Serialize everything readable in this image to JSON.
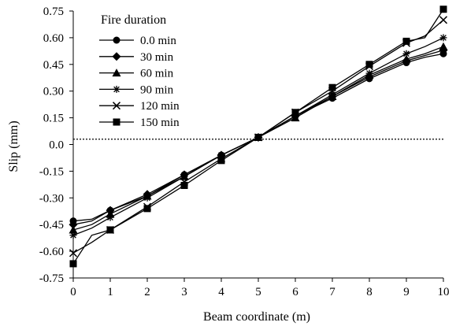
{
  "chart_data": {
    "type": "line",
    "title": "",
    "xlabel": "Beam coordinate (m)",
    "ylabel": "Slip (mm)",
    "xlim": [
      0,
      10
    ],
    "ylim": [
      -0.75,
      0.75
    ],
    "x_ticks": [
      "0",
      "1",
      "2",
      "3",
      "4",
      "5",
      "6",
      "7",
      "8",
      "9",
      "10"
    ],
    "y_ticks": [
      "0.75",
      "0.60",
      "0.45",
      "0.30",
      "0.15",
      "0.0",
      "-0.15",
      "-0.30",
      "-0.45",
      "-0.60",
      "-0.75"
    ],
    "grid": false,
    "reference_line": {
      "y": 0.03,
      "style": "dotted"
    },
    "legend": {
      "title": "Fire duration",
      "placement": "top-left"
    },
    "series": [
      {
        "name": "0.0 min",
        "marker": "circle",
        "x": [
          0,
          0.5,
          1,
          2,
          3,
          4,
          5,
          6,
          7,
          8,
          9,
          9.5,
          10
        ],
        "y": [
          -0.43,
          -0.42,
          -0.37,
          -0.29,
          -0.17,
          -0.06,
          0.04,
          0.16,
          0.26,
          0.37,
          0.46,
          0.49,
          0.51
        ]
      },
      {
        "name": "30 min",
        "marker": "diamond",
        "x": [
          0,
          0.5,
          1,
          2,
          3,
          4,
          5,
          6,
          7,
          8,
          9,
          9.5,
          10
        ],
        "y": [
          -0.45,
          -0.43,
          -0.37,
          -0.28,
          -0.17,
          -0.06,
          0.04,
          0.16,
          0.27,
          0.38,
          0.47,
          0.5,
          0.53
        ]
      },
      {
        "name": "60 min",
        "marker": "triangle",
        "x": [
          0,
          0.5,
          1,
          2,
          3,
          4,
          5,
          6,
          7,
          8,
          9,
          9.5,
          10
        ],
        "y": [
          -0.48,
          -0.45,
          -0.39,
          -0.29,
          -0.18,
          -0.06,
          0.04,
          0.15,
          0.27,
          0.39,
          0.48,
          0.51,
          0.55
        ]
      },
      {
        "name": "90 min",
        "marker": "asterisk",
        "x": [
          0,
          0.5,
          1,
          2,
          3,
          4,
          5,
          6,
          7,
          8,
          9,
          9.5,
          10
        ],
        "y": [
          -0.51,
          -0.47,
          -0.41,
          -0.3,
          -0.18,
          -0.06,
          0.04,
          0.16,
          0.28,
          0.4,
          0.51,
          0.55,
          0.6
        ]
      },
      {
        "name": "120 min",
        "marker": "x",
        "x": [
          0,
          0.5,
          1,
          2,
          3,
          4,
          5,
          6,
          7,
          8,
          9,
          9.5,
          10
        ],
        "y": [
          -0.61,
          -0.55,
          -0.48,
          -0.35,
          -0.21,
          -0.08,
          0.04,
          0.18,
          0.3,
          0.44,
          0.57,
          0.61,
          0.7
        ]
      },
      {
        "name": "150 min",
        "marker": "square",
        "x": [
          0,
          0.5,
          1,
          2,
          3,
          4,
          5,
          6,
          7,
          8,
          9,
          9.5,
          10
        ],
        "y": [
          -0.67,
          -0.51,
          -0.48,
          -0.36,
          -0.23,
          -0.09,
          0.04,
          0.18,
          0.32,
          0.45,
          0.58,
          0.6,
          0.76
        ]
      }
    ]
  }
}
